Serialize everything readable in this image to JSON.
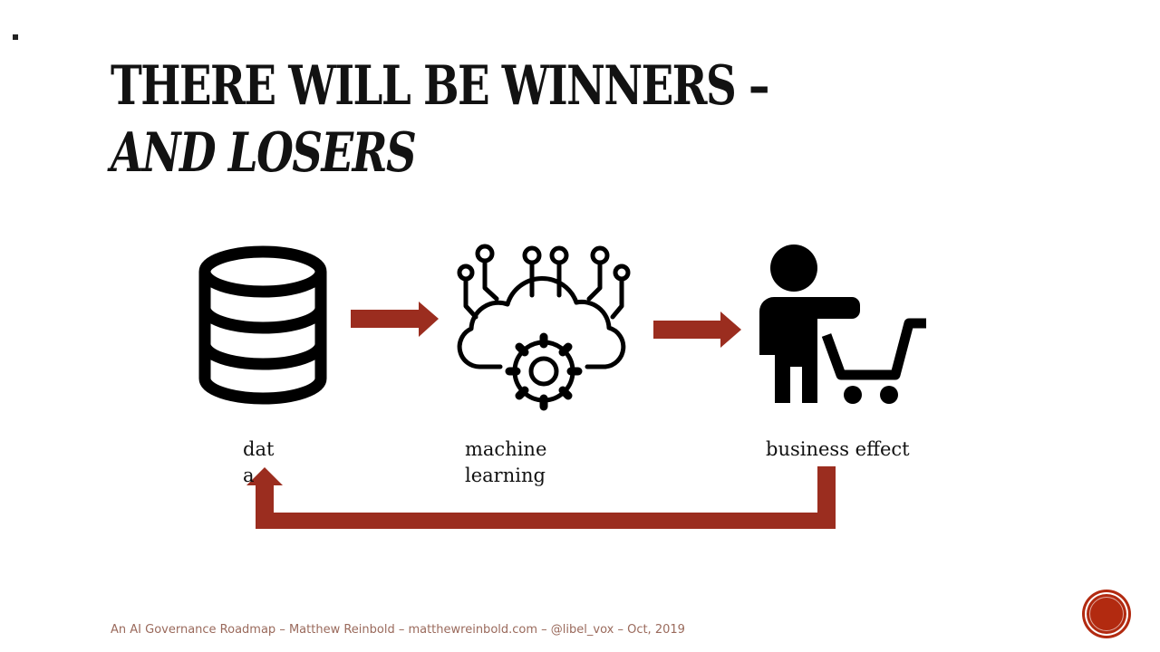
{
  "slide": {
    "title_line1": "THERE WILL BE WINNERS –",
    "title_line2": "AND LOSERS",
    "footer": "An AI Governance Roadmap – Matthew Reinbold – matthewreinbold.com – @libel_vox – Oct, 2019"
  },
  "diagram": {
    "nodes": [
      {
        "icon": "database-icon",
        "label": "data"
      },
      {
        "icon": "machine-learning-cloud-gear-icon",
        "label": "machine learning"
      },
      {
        "icon": "person-shopping-cart-icon",
        "label": "business effect"
      }
    ],
    "arrow_color": "#9b2d1f"
  }
}
